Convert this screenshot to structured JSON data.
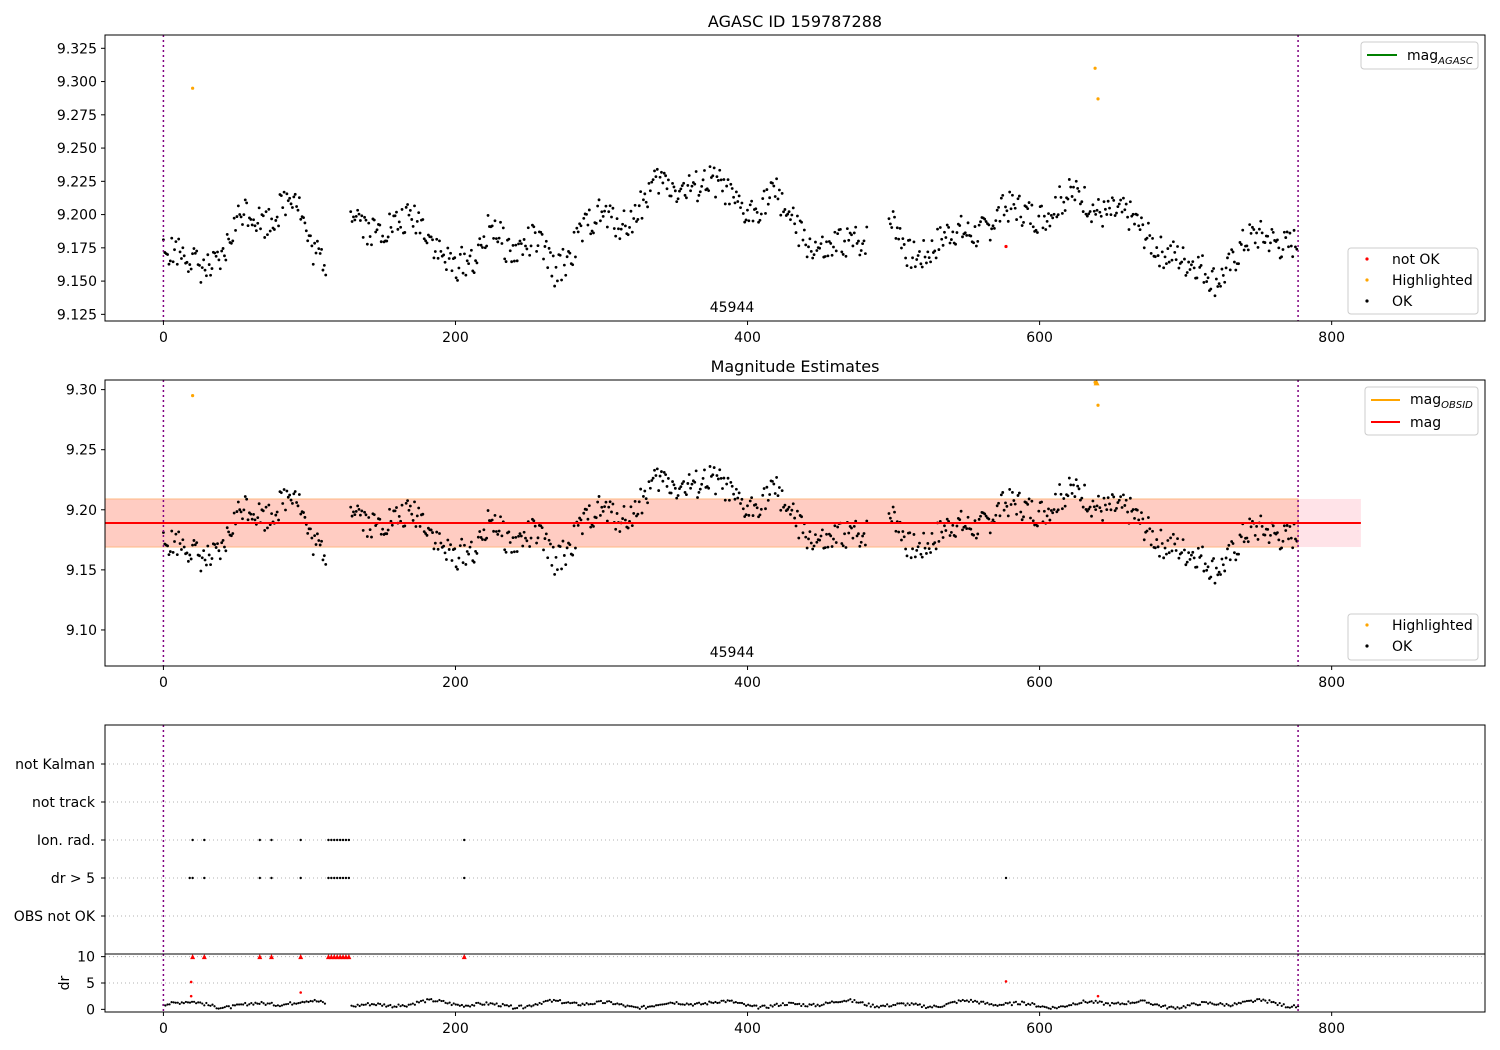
{
  "colors": {
    "ok": "#000000",
    "not_ok": "#ff0000",
    "highlighted": "#ffa500",
    "mag_agasc": "#008000",
    "mag_obsid": "#ffa500",
    "mag": "#ff0000",
    "obs_marker": "#800080",
    "band_outer": "#ffc0cb",
    "band_inner": "#ffa07a"
  },
  "chart_data": [
    {
      "type": "scatter",
      "title": "AGASC ID 159787288",
      "xlim": [
        -40,
        905
      ],
      "ylim": [
        9.12,
        9.335
      ],
      "xticks": [
        0,
        200,
        400,
        600,
        800
      ],
      "xtick_labels": [
        "0",
        "200",
        "400",
        "600",
        "800"
      ],
      "yticks": [
        9.125,
        9.15,
        9.175,
        9.2,
        9.225,
        9.25,
        9.275,
        9.3,
        9.325
      ],
      "ytick_labels": [
        "9.125",
        "9.150",
        "9.175",
        "9.200",
        "9.225",
        "9.250",
        "9.275",
        "9.300",
        "9.325"
      ],
      "obs_boundaries": [
        0,
        777
      ],
      "obsid_label": {
        "text": "45944",
        "x": 388
      },
      "legend_lines": [
        {
          "label": "mag",
          "sub": "AGASC",
          "color": "#008000"
        }
      ],
      "legend_points": [
        {
          "label": "not OK",
          "color": "#ff0000"
        },
        {
          "label": "Highlighted",
          "color": "#ffa500"
        },
        {
          "label": "OK",
          "color": "#000000"
        }
      ],
      "highlighted": [
        {
          "x": 20,
          "y": 9.295
        },
        {
          "x": 638,
          "y": 9.31
        },
        {
          "x": 640,
          "y": 9.287
        }
      ],
      "not_ok": [
        {
          "x": 577,
          "y": 9.176
        }
      ],
      "ok_trend": [
        [
          0,
          9.17
        ],
        [
          20,
          9.165
        ],
        [
          40,
          9.165
        ],
        [
          55,
          9.2
        ],
        [
          70,
          9.2
        ],
        [
          90,
          9.212
        ],
        [
          100,
          9.175
        ],
        [
          112,
          9.17
        ],
        [
          130,
          9.2
        ],
        [
          140,
          9.185
        ],
        [
          155,
          9.198
        ],
        [
          175,
          9.19
        ],
        [
          200,
          9.165
        ],
        [
          215,
          9.16
        ],
        [
          225,
          9.195
        ],
        [
          240,
          9.175
        ],
        [
          255,
          9.175
        ],
        [
          268,
          9.16
        ],
        [
          285,
          9.185
        ],
        [
          300,
          9.195
        ],
        [
          320,
          9.2
        ],
        [
          340,
          9.22
        ],
        [
          360,
          9.225
        ],
        [
          385,
          9.215
        ],
        [
          400,
          9.205
        ],
        [
          420,
          9.21
        ],
        [
          440,
          9.185
        ],
        [
          455,
          9.165
        ],
        [
          470,
          9.18
        ],
        [
          485,
          9.19
        ],
        [
          500,
          9.19
        ],
        [
          510,
          9.17
        ],
        [
          530,
          9.18
        ],
        [
          550,
          9.185
        ],
        [
          570,
          9.2
        ],
        [
          590,
          9.2
        ],
        [
          610,
          9.208
        ],
        [
          630,
          9.21
        ],
        [
          650,
          9.205
        ],
        [
          670,
          9.185
        ],
        [
          690,
          9.175
        ],
        [
          700,
          9.16
        ],
        [
          720,
          9.155
        ],
        [
          740,
          9.175
        ],
        [
          760,
          9.185
        ],
        [
          777,
          9.18
        ]
      ],
      "ok_gaps": [
        [
          112,
          128
        ],
        [
          482,
          496
        ]
      ],
      "ok_spread": 0.012
    },
    {
      "type": "scatter",
      "title": "Magnitude Estimates",
      "xlim": [
        -40,
        905
      ],
      "ylim": [
        9.07,
        9.308
      ],
      "xticks": [
        0,
        200,
        400,
        600,
        800
      ],
      "xtick_labels": [
        "0",
        "200",
        "400",
        "600",
        "800"
      ],
      "yticks": [
        9.1,
        9.15,
        9.2,
        9.25,
        9.3
      ],
      "ytick_labels": [
        "9.10",
        "9.15",
        "9.20",
        "9.25",
        "9.30"
      ],
      "obs_boundaries": [
        0,
        777
      ],
      "obsid_label": {
        "text": "45944",
        "x": 388
      },
      "mag_line": {
        "value": 9.189,
        "x_range": [
          -40,
          820
        ]
      },
      "band_outer": {
        "low": 9.169,
        "high": 9.209,
        "x_range": [
          -40,
          820
        ]
      },
      "band_inner": {
        "low": 9.169,
        "high": 9.209,
        "x_range": [
          -40,
          777
        ]
      },
      "legend_lines": [
        {
          "label": "mag",
          "sub": "OBSID",
          "color": "#ffa500"
        },
        {
          "label": "mag",
          "sub": "",
          "color": "#ff0000"
        }
      ],
      "legend_points": [
        {
          "label": "Highlighted",
          "color": "#ffa500"
        },
        {
          "label": "OK",
          "color": "#000000"
        }
      ],
      "highlighted": [
        {
          "x": 20,
          "y": 9.295
        },
        {
          "x": 638,
          "y": 9.306
        },
        {
          "x": 640,
          "y": 9.287
        }
      ],
      "obsid_mag_marker": {
        "x": 639,
        "y": 9.306
      }
    },
    {
      "type": "scatter",
      "title": "",
      "xlim": [
        -40,
        905
      ],
      "flag_rows": [
        "not Kalman",
        "not track",
        "Ion. rad.",
        "dr > 5",
        "OBS not OK"
      ],
      "obs_boundaries": [
        0,
        777
      ],
      "flags": {
        "Ion. rad.": [
          20,
          28,
          66,
          74,
          94,
          113,
          115,
          117,
          119,
          121,
          123,
          125,
          127,
          206
        ],
        "dr > 5": [
          18,
          20,
          28,
          66,
          74,
          94,
          113,
          115,
          117,
          119,
          121,
          123,
          125,
          127,
          206,
          577
        ]
      }
    },
    {
      "type": "scatter",
      "title": "",
      "xlim": [
        -40,
        905
      ],
      "ylim": [
        -0.5,
        10.5
      ],
      "ylabel": "dr",
      "yticks": [
        0,
        5,
        10
      ],
      "ytick_labels": [
        "0",
        "5",
        "10"
      ],
      "xticks": [
        0,
        200,
        400,
        600,
        800
      ],
      "xtick_labels": [
        "0",
        "200",
        "400",
        "600",
        "800"
      ],
      "obs_boundaries": [
        0,
        777
      ],
      "capped_red": [
        20,
        28,
        66,
        74,
        94,
        113,
        115,
        117,
        119,
        121,
        123,
        125,
        127,
        206
      ],
      "red_points": [
        {
          "x": 19,
          "y": 5.2
        },
        {
          "x": 94,
          "y": 3.2
        },
        {
          "x": 577,
          "y": 5.3
        },
        {
          "x": 640,
          "y": 2.5
        },
        {
          "x": 19,
          "y": 2.5
        }
      ],
      "ok_level": 1.0,
      "ok_gaps": [
        [
          112,
          128
        ]
      ]
    }
  ]
}
